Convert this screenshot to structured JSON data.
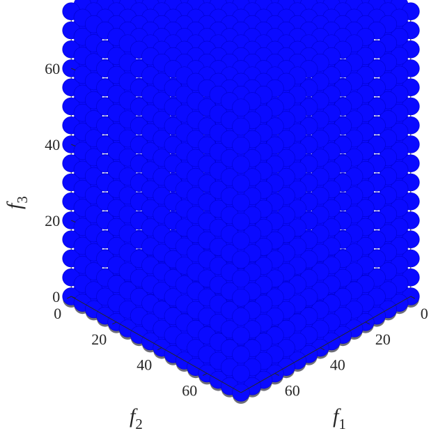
{
  "chart_data": {
    "type": "scatter3d",
    "title": "",
    "xlabel": "f1",
    "ylabel": "f2",
    "zlabel": "f3",
    "axis_labels": {
      "x": {
        "letter": "f",
        "sub": "1"
      },
      "y": {
        "letter": "f",
        "sub": "2"
      },
      "z": {
        "letter": "f",
        "sub": "3"
      }
    },
    "xlim": [
      0,
      75
    ],
    "ylim": [
      0,
      75
    ],
    "zlim": [
      0,
      75
    ],
    "x_ticks": [
      "0",
      "20",
      "40",
      "60"
    ],
    "y_ticks": [
      "0",
      "20",
      "40",
      "60"
    ],
    "z_ticks": [
      "0",
      "20",
      "40",
      "60"
    ],
    "x_tick_values": [
      0,
      20,
      40,
      60
    ],
    "y_tick_values": [
      0,
      20,
      40,
      60
    ],
    "z_tick_values": [
      0,
      20,
      40,
      60
    ],
    "series": [
      {
        "marker": "filled-circle",
        "color": "#0a0aff",
        "edge_color": "#0000cc",
        "shadow_color": "#6f6f78",
        "grid_step": 5,
        "range": [
          0,
          75
        ],
        "description": "Dense grid of points filling the cube [0,75]^3"
      }
    ],
    "grid": false,
    "box": true,
    "view": "isometric"
  }
}
